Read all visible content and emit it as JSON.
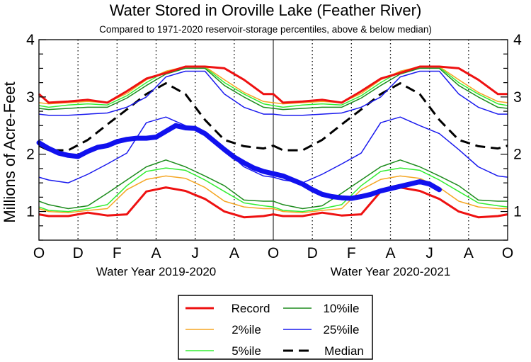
{
  "chart_data": {
    "type": "line",
    "title": "Water Stored in Oroville Lake (Feather River)",
    "subtitle": "Compared to 1971-2020 reservoir-storage percentiles, above & below median)",
    "ylabel": "Millions of Acre-Feet",
    "ylim": [
      0.5,
      4.0
    ],
    "xlim": [
      0,
      24
    ],
    "yticks": [
      1,
      2,
      3,
      4
    ],
    "ytick_labels": [
      "1",
      "2",
      "3",
      "4"
    ],
    "month_ticks": [
      {
        "x": 0,
        "label": "O"
      },
      {
        "x": 2,
        "label": "D"
      },
      {
        "x": 4,
        "label": "F"
      },
      {
        "x": 6,
        "label": "A"
      },
      {
        "x": 8,
        "label": "J"
      },
      {
        "x": 10,
        "label": "A"
      },
      {
        "x": 12,
        "label": "O"
      },
      {
        "x": 14,
        "label": "D"
      },
      {
        "x": 16,
        "label": "F"
      },
      {
        "x": 18,
        "label": "A"
      },
      {
        "x": 20,
        "label": "J"
      },
      {
        "x": 22,
        "label": "A"
      },
      {
        "x": 24,
        "label": "O"
      }
    ],
    "water_year_labels": [
      {
        "center_x": 6,
        "label": "Water Year 2019-2020"
      },
      {
        "center_x": 18,
        "label": "Water Year 2020-2021"
      }
    ],
    "year_divider_x": 12,
    "percentile_cycle_x": [
      0,
      0.5,
      1.5,
      2.5,
      3.5,
      4.5,
      5.5,
      6.5,
      7.5,
      8.5,
      9.5,
      10.5,
      11.5,
      12
    ],
    "series": [
      {
        "name": "Record",
        "key": "record",
        "color": "#ee1111",
        "width": 3,
        "values": [
          0.95,
          0.92,
          0.92,
          0.98,
          0.93,
          0.95,
          1.35,
          1.42,
          1.36,
          1.22,
          1.0,
          0.9,
          0.92,
          0.95
        ]
      },
      {
        "name": "2%ile",
        "key": "p2",
        "color": "#f5a623",
        "width": 1.5,
        "values": [
          1.05,
          1.0,
          0.98,
          1.02,
          1.05,
          1.38,
          1.56,
          1.62,
          1.58,
          1.42,
          1.18,
          1.08,
          1.05,
          1.05
        ]
      },
      {
        "name": "5%ile",
        "key": "p5",
        "color": "#33ee33",
        "width": 1.5,
        "values": [
          1.08,
          1.02,
          1.0,
          1.05,
          1.12,
          1.45,
          1.7,
          1.76,
          1.72,
          1.55,
          1.35,
          1.15,
          1.1,
          1.08
        ]
      },
      {
        "name": "10%ile",
        "key": "p10",
        "color": "#1e8c1e",
        "width": 1.5,
        "values": [
          1.18,
          1.12,
          1.05,
          1.1,
          1.32,
          1.55,
          1.78,
          1.9,
          1.78,
          1.62,
          1.45,
          1.2,
          1.18,
          1.18
        ]
      },
      {
        "name": "25%ile",
        "key": "p25",
        "color": "#1a1aee",
        "width": 1.5,
        "values": [
          1.6,
          1.55,
          1.5,
          1.65,
          1.83,
          2.02,
          2.55,
          2.65,
          2.5,
          2.36,
          2.08,
          1.78,
          1.62,
          1.6
        ]
      },
      {
        "name": "Median",
        "key": "median",
        "color": "#000000",
        "width": 3,
        "dash": "14,8",
        "values": [
          2.15,
          2.07,
          2.07,
          2.25,
          2.52,
          2.78,
          3.05,
          3.24,
          3.05,
          2.6,
          2.25,
          2.14,
          2.1,
          2.15
        ]
      },
      {
        "name": "",
        "key": "p75",
        "color": "#1a1aee",
        "width": 1.5,
        "values": [
          2.7,
          2.68,
          2.68,
          2.7,
          2.72,
          2.82,
          3.0,
          3.35,
          3.45,
          3.45,
          3.05,
          2.82,
          2.7,
          2.7
        ]
      },
      {
        "name": "",
        "key": "p90",
        "color": "#1e8c1e",
        "width": 1.5,
        "values": [
          2.8,
          2.78,
          2.8,
          2.82,
          2.82,
          2.98,
          3.2,
          3.4,
          3.5,
          3.5,
          3.2,
          3.0,
          2.82,
          2.8
        ]
      },
      {
        "name": "",
        "key": "p95",
        "color": "#33ee33",
        "width": 1.5,
        "values": [
          2.85,
          2.82,
          2.86,
          2.88,
          2.86,
          3.02,
          3.25,
          3.45,
          3.52,
          3.52,
          3.25,
          3.05,
          2.88,
          2.85
        ]
      },
      {
        "name": "",
        "key": "p98",
        "color": "#f5a623",
        "width": 1.5,
        "values": [
          2.9,
          2.88,
          2.9,
          2.92,
          2.9,
          3.06,
          3.3,
          3.45,
          3.53,
          3.53,
          3.3,
          3.08,
          2.92,
          2.9
        ]
      },
      {
        "name": "",
        "key": "max",
        "color": "#ee1111",
        "width": 3,
        "values": [
          3.05,
          2.9,
          2.92,
          2.95,
          2.9,
          3.1,
          3.32,
          3.42,
          3.53,
          3.53,
          3.5,
          3.3,
          3.05,
          3.05
        ]
      }
    ],
    "observed": {
      "name": "Observed storage",
      "color": "#1111ee",
      "width": 7,
      "x": [
        0,
        0.5,
        1.0,
        1.5,
        2.0,
        2.5,
        3.0,
        3.5,
        4.0,
        4.5,
        5.0,
        5.5,
        6.0,
        6.5,
        7.0,
        7.5,
        8.0,
        8.5,
        9.0,
        9.5,
        10.0,
        10.5,
        11.0,
        11.5,
        12.0,
        12.5,
        13.0,
        13.5,
        14.0,
        14.5,
        15.0,
        15.5,
        16.0,
        16.5,
        17.0,
        17.5,
        18.0,
        18.5,
        19.0,
        19.5,
        20.0,
        20.5
      ],
      "y": [
        2.2,
        2.1,
        2.02,
        1.98,
        1.96,
        2.05,
        2.12,
        2.15,
        2.22,
        2.26,
        2.28,
        2.28,
        2.3,
        2.4,
        2.5,
        2.46,
        2.45,
        2.36,
        2.22,
        2.08,
        1.95,
        1.85,
        1.76,
        1.7,
        1.66,
        1.62,
        1.55,
        1.48,
        1.38,
        1.3,
        1.26,
        1.24,
        1.23,
        1.26,
        1.3,
        1.36,
        1.4,
        1.44,
        1.48,
        1.52,
        1.48,
        1.38
      ]
    }
  },
  "legend": [
    {
      "label": "Record",
      "color": "#ee1111",
      "width": 3
    },
    {
      "label": "10%ile",
      "color": "#1e8c1e",
      "width": 1.5
    },
    {
      "label": "2%ile",
      "color": "#f5a623",
      "width": 1.5
    },
    {
      "label": "25%ile",
      "color": "#1a1aee",
      "width": 1.5
    },
    {
      "label": "5%ile",
      "color": "#33ee33",
      "width": 1.5
    },
    {
      "label": "Median",
      "color": "#000000",
      "width": 3,
      "dash": "14,8"
    }
  ]
}
